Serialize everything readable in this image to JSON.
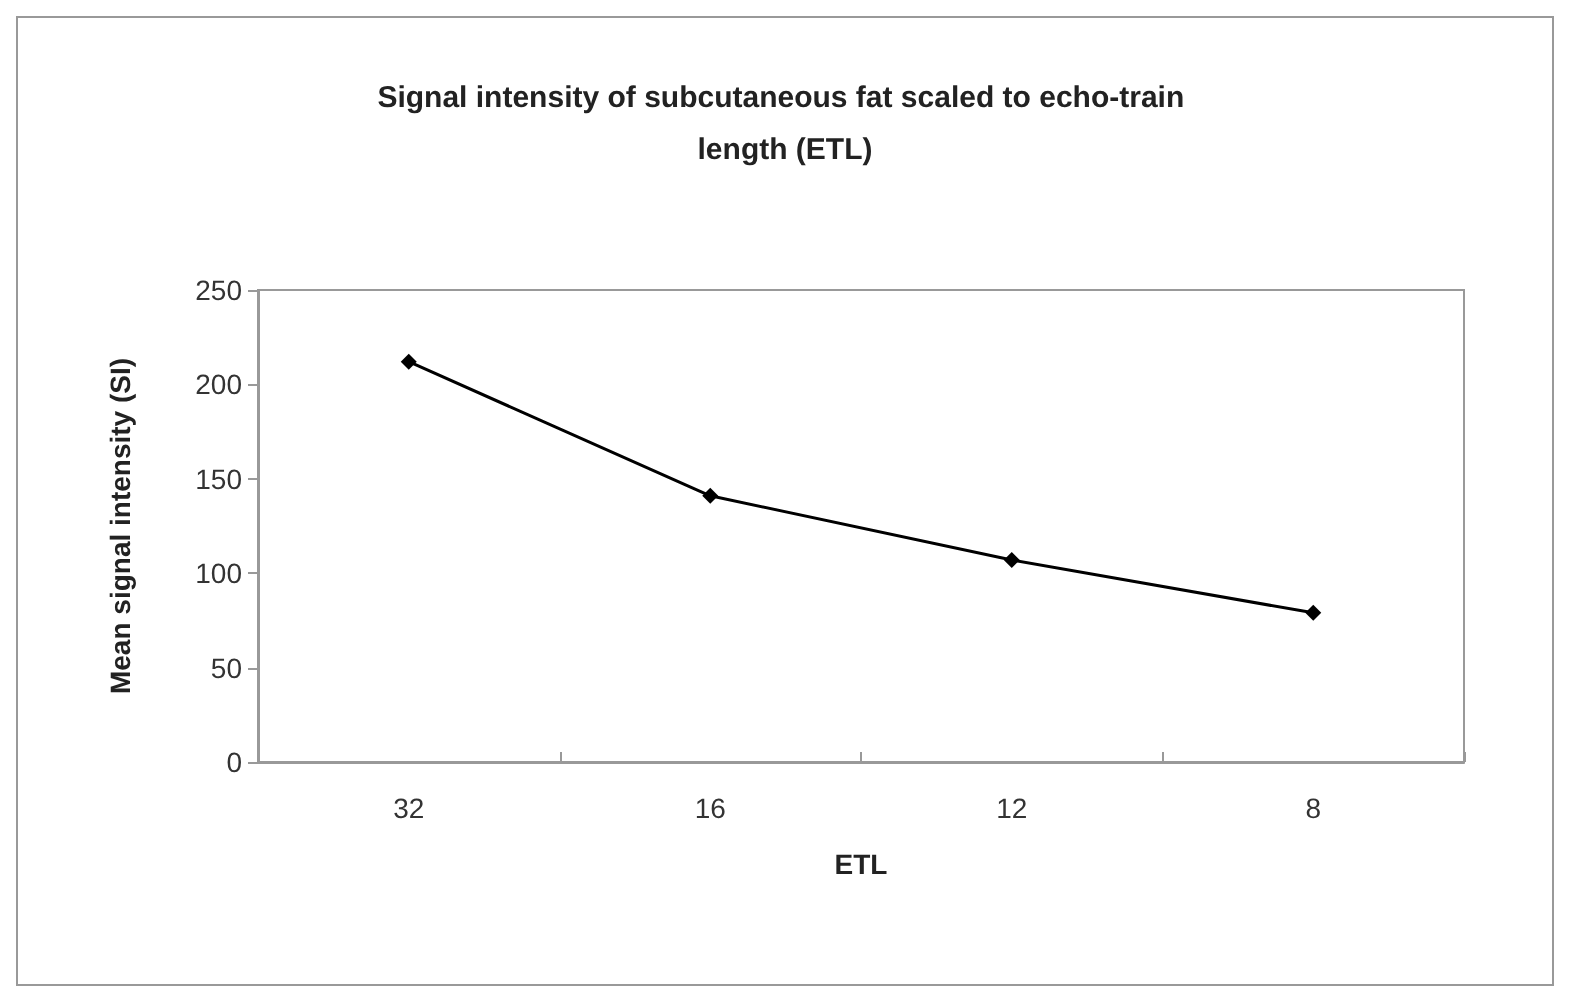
{
  "chart_data": {
    "type": "line",
    "title": "Signal intensity of subcutaneous fat scaled to echo-train length (ETL)",
    "xlabel": "ETL",
    "ylabel": "Mean signal intensity (SI)",
    "categories": [
      "32",
      "16",
      "12",
      "8"
    ],
    "series": [
      {
        "color": "#000000",
        "values": [
          212,
          141,
          107,
          79
        ]
      }
    ],
    "ylim": [
      0,
      250
    ],
    "yticks": [
      0,
      50,
      100,
      150,
      200,
      250
    ],
    "grid": false,
    "marker": "diamond",
    "line_style": "solid"
  }
}
